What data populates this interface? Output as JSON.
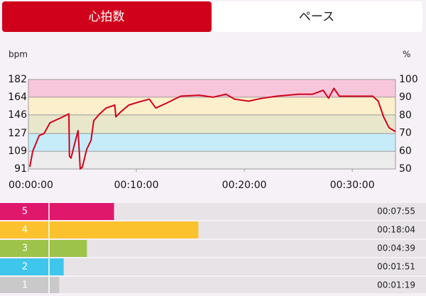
{
  "tabs": [
    "心拍数",
    "ペース"
  ],
  "chart_data": {
    "type": "line",
    "y_label": "bpm",
    "y2_label": "%",
    "color": "#d0021b",
    "x": [
      0.13,
      0.4,
      1.0,
      1.45,
      2.0,
      3.0,
      3.75,
      3.8,
      3.95,
      4.2,
      4.6,
      4.8,
      5.0,
      5.4,
      5.8,
      6.05,
      6.6,
      7.2,
      8.0,
      8.1,
      8.55,
      9.3,
      10.2,
      11.2,
      11.8,
      12.8,
      14.1,
      15.8,
      17.1,
      18.3,
      19.1,
      20.4,
      21.7,
      23.0,
      25.0,
      26.3,
      27.3,
      27.8,
      28.3,
      28.8,
      30.3,
      31.9,
      32.4,
      32.9,
      33.4,
      34.0
    ],
    "values": [
      93,
      109,
      125,
      127,
      138,
      143,
      147,
      104,
      102,
      113,
      130,
      91,
      93,
      111,
      120,
      140,
      147,
      153,
      156,
      144,
      149,
      156,
      159,
      162,
      153,
      158,
      165,
      166,
      164,
      167,
      162,
      160,
      163,
      165,
      167,
      167,
      171,
      163,
      173,
      165,
      165,
      165,
      160,
      144,
      133,
      129
    ],
    "xlim": [
      0,
      34
    ],
    "xticks": [
      {
        "value": 0,
        "label": "00:00:00"
      },
      {
        "value": 10,
        "label": "00:10:00"
      },
      {
        "value": 20,
        "label": "00:20:00"
      },
      {
        "value": 30,
        "label": "00:30:00"
      }
    ],
    "ylim": [
      91,
      182
    ],
    "yticks": [
      182,
      164,
      146,
      127,
      109,
      91
    ],
    "y2lim": [
      50,
      100
    ],
    "y2ticks": [
      100,
      90,
      80,
      70,
      60,
      50
    ],
    "band_colors": [
      "#f8c6da",
      "#fcefcb",
      "#e8e7cc",
      "#c6ecf9",
      "#ececec"
    ]
  },
  "zones": {
    "names": [
      "5",
      "4",
      "3",
      "2",
      "1"
    ],
    "values": [
      475,
      1084,
      279,
      111,
      79
    ],
    "value_labels": [
      "00:07:55",
      "00:18:04",
      "00:04:39",
      "00:01:51",
      "00:01:19"
    ],
    "colors": [
      "#e0186c",
      "#fcc22e",
      "#9dc34b",
      "#3fc6ec",
      "#c9c9c9"
    ]
  }
}
